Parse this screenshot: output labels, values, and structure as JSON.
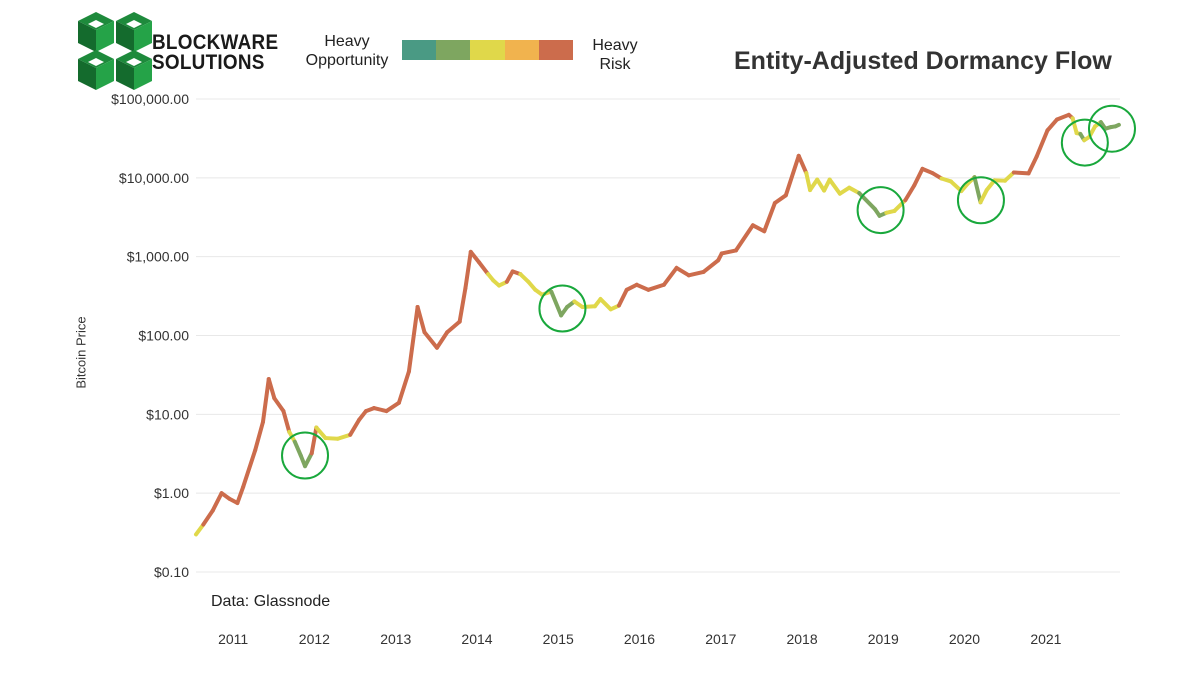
{
  "brand": {
    "line1": "BLOCKWARE",
    "line2": "SOLUTIONS",
    "logo_icon": "stacked-cubes-logo-icon",
    "colors": {
      "logo_green": "#1e8a3c",
      "logo_dark": "#1a1a1a"
    }
  },
  "legend": {
    "left_label": "Heavy Opportunity",
    "right_label": "Heavy Risk",
    "scale_colors": [
      "#4a9a84",
      "#7ea660",
      "#e0d84a",
      "#f1b34e",
      "#cc6c4c"
    ]
  },
  "source_note": "Data: Glassnode",
  "chart_data": {
    "type": "line",
    "title": "Entity-Adjusted Dormancy Flow",
    "xlabel": "",
    "ylabel": "Bitcoin Price",
    "y_scale": "log",
    "ylim": [
      0.1,
      100000
    ],
    "xlim": [
      "2010-07-18",
      "2021-11-30"
    ],
    "y_ticks": [
      "$0.10",
      "$1.00",
      "$10.00",
      "$100.00",
      "$1,000.00",
      "$10,000.00",
      "$100,000.00"
    ],
    "y_tick_values": [
      0.1,
      1,
      10,
      100,
      1000,
      10000,
      100000
    ],
    "x_ticks": [
      "2011",
      "2012",
      "2013",
      "2014",
      "2015",
      "2016",
      "2017",
      "2018",
      "2019",
      "2020",
      "2021"
    ],
    "x_tick_dates": [
      "2011-01-01",
      "2012-01-01",
      "2013-01-01",
      "2014-01-01",
      "2015-01-01",
      "2016-01-01",
      "2017-01-01",
      "2018-01-01",
      "2019-01-01",
      "2020-01-01",
      "2021-01-01"
    ],
    "grid": {
      "horizontal": true,
      "vertical": false
    },
    "grid_color": "#e8e8e8",
    "colors": {
      "heavy_opportunity": "#7ea660",
      "neutral": "#e0d84a",
      "heavy_risk": "#cc6c4c"
    },
    "series": [
      {
        "values": [
          {
            "date": "2010-07-18",
            "price": 0.3,
            "zone": "neutral"
          },
          {
            "date": "2010-08-20",
            "price": 0.4,
            "zone": "neutral"
          },
          {
            "date": "2010-10-01",
            "price": 0.6,
            "zone": "heavy_risk"
          },
          {
            "date": "2010-11-10",
            "price": 1.0,
            "zone": "heavy_risk"
          },
          {
            "date": "2010-12-15",
            "price": 0.85,
            "zone": "heavy_risk"
          },
          {
            "date": "2011-01-20",
            "price": 0.75,
            "zone": "heavy_risk"
          },
          {
            "date": "2011-02-15",
            "price": 1.2,
            "zone": "heavy_risk"
          },
          {
            "date": "2011-04-10",
            "price": 3.5,
            "zone": "heavy_risk"
          },
          {
            "date": "2011-05-15",
            "price": 8,
            "zone": "heavy_risk"
          },
          {
            "date": "2011-06-10",
            "price": 28,
            "zone": "heavy_risk"
          },
          {
            "date": "2011-07-05",
            "price": 16,
            "zone": "heavy_risk"
          },
          {
            "date": "2011-08-15",
            "price": 11,
            "zone": "heavy_risk"
          },
          {
            "date": "2011-09-10",
            "price": 6,
            "zone": "heavy_risk"
          },
          {
            "date": "2011-10-05",
            "price": 4.5,
            "zone": "neutral"
          },
          {
            "date": "2011-11-01",
            "price": 3.0,
            "zone": "heavy_opportunity"
          },
          {
            "date": "2011-11-20",
            "price": 2.2,
            "zone": "heavy_opportunity"
          },
          {
            "date": "2011-12-20",
            "price": 3.2,
            "zone": "heavy_opportunity"
          },
          {
            "date": "2012-01-10",
            "price": 6.8,
            "zone": "heavy_risk"
          },
          {
            "date": "2012-02-20",
            "price": 5.0,
            "zone": "neutral"
          },
          {
            "date": "2012-04-15",
            "price": 4.9,
            "zone": "neutral"
          },
          {
            "date": "2012-06-10",
            "price": 5.5,
            "zone": "neutral"
          },
          {
            "date": "2012-07-20",
            "price": 8.5,
            "zone": "heavy_risk"
          },
          {
            "date": "2012-08-20",
            "price": 11,
            "zone": "heavy_risk"
          },
          {
            "date": "2012-09-25",
            "price": 12,
            "zone": "heavy_risk"
          },
          {
            "date": "2012-11-20",
            "price": 11,
            "zone": "heavy_risk"
          },
          {
            "date": "2013-01-15",
            "price": 14,
            "zone": "heavy_risk"
          },
          {
            "date": "2013-03-01",
            "price": 35,
            "zone": "heavy_risk"
          },
          {
            "date": "2013-04-09",
            "price": 230,
            "zone": "heavy_risk"
          },
          {
            "date": "2013-05-10",
            "price": 110,
            "zone": "heavy_risk"
          },
          {
            "date": "2013-07-05",
            "price": 70,
            "zone": "heavy_risk"
          },
          {
            "date": "2013-08-20",
            "price": 110,
            "zone": "heavy_risk"
          },
          {
            "date": "2013-10-15",
            "price": 150,
            "zone": "heavy_risk"
          },
          {
            "date": "2013-11-10",
            "price": 400,
            "zone": "heavy_risk"
          },
          {
            "date": "2013-12-04",
            "price": 1150,
            "zone": "heavy_risk"
          },
          {
            "date": "2014-01-10",
            "price": 850,
            "zone": "heavy_risk"
          },
          {
            "date": "2014-02-20",
            "price": 600,
            "zone": "heavy_risk"
          },
          {
            "date": "2014-03-15",
            "price": 500,
            "zone": "neutral"
          },
          {
            "date": "2014-04-10",
            "price": 430,
            "zone": "neutral"
          },
          {
            "date": "2014-05-15",
            "price": 480,
            "zone": "neutral"
          },
          {
            "date": "2014-06-10",
            "price": 650,
            "zone": "heavy_risk"
          },
          {
            "date": "2014-07-15",
            "price": 600,
            "zone": "heavy_risk"
          },
          {
            "date": "2014-08-20",
            "price": 480,
            "zone": "neutral"
          },
          {
            "date": "2014-09-20",
            "price": 380,
            "zone": "neutral"
          },
          {
            "date": "2014-10-20",
            "price": 330,
            "zone": "neutral"
          },
          {
            "date": "2014-12-01",
            "price": 360,
            "zone": "neutral"
          },
          {
            "date": "2015-01-14",
            "price": 180,
            "zone": "heavy_opportunity"
          },
          {
            "date": "2015-02-10",
            "price": 230,
            "zone": "heavy_opportunity"
          },
          {
            "date": "2015-03-15",
            "price": 270,
            "zone": "heavy_opportunity"
          },
          {
            "date": "2015-04-20",
            "price": 230,
            "zone": "neutral"
          },
          {
            "date": "2015-06-15",
            "price": 235,
            "zone": "neutral"
          },
          {
            "date": "2015-07-10",
            "price": 290,
            "zone": "neutral"
          },
          {
            "date": "2015-08-25",
            "price": 215,
            "zone": "neutral"
          },
          {
            "date": "2015-10-01",
            "price": 240,
            "zone": "neutral"
          },
          {
            "date": "2015-11-05",
            "price": 380,
            "zone": "heavy_risk"
          },
          {
            "date": "2015-12-20",
            "price": 440,
            "zone": "heavy_risk"
          },
          {
            "date": "2016-02-10",
            "price": 380,
            "zone": "heavy_risk"
          },
          {
            "date": "2016-04-20",
            "price": 440,
            "zone": "heavy_risk"
          },
          {
            "date": "2016-06-16",
            "price": 720,
            "zone": "heavy_risk"
          },
          {
            "date": "2016-08-10",
            "price": 580,
            "zone": "heavy_risk"
          },
          {
            "date": "2016-10-15",
            "price": 640,
            "zone": "heavy_risk"
          },
          {
            "date": "2016-12-20",
            "price": 900,
            "zone": "heavy_risk"
          },
          {
            "date": "2017-01-05",
            "price": 1100,
            "zone": "heavy_risk"
          },
          {
            "date": "2017-03-10",
            "price": 1200,
            "zone": "heavy_risk"
          },
          {
            "date": "2017-05-25",
            "price": 2500,
            "zone": "heavy_risk"
          },
          {
            "date": "2017-07-15",
            "price": 2100,
            "zone": "heavy_risk"
          },
          {
            "date": "2017-09-01",
            "price": 4800,
            "zone": "heavy_risk"
          },
          {
            "date": "2017-10-20",
            "price": 6000,
            "zone": "heavy_risk"
          },
          {
            "date": "2017-12-17",
            "price": 19000,
            "zone": "heavy_risk"
          },
          {
            "date": "2018-01-20",
            "price": 11500,
            "zone": "heavy_risk"
          },
          {
            "date": "2018-02-06",
            "price": 7000,
            "zone": "neutral"
          },
          {
            "date": "2018-03-10",
            "price": 9500,
            "zone": "neutral"
          },
          {
            "date": "2018-04-10",
            "price": 6900,
            "zone": "neutral"
          },
          {
            "date": "2018-05-05",
            "price": 9500,
            "zone": "neutral"
          },
          {
            "date": "2018-06-20",
            "price": 6300,
            "zone": "neutral"
          },
          {
            "date": "2018-08-01",
            "price": 7500,
            "zone": "neutral"
          },
          {
            "date": "2018-09-15",
            "price": 6400,
            "zone": "neutral"
          },
          {
            "date": "2018-11-25",
            "price": 4000,
            "zone": "heavy_opportunity"
          },
          {
            "date": "2018-12-15",
            "price": 3300,
            "zone": "heavy_opportunity"
          },
          {
            "date": "2019-01-15",
            "price": 3600,
            "zone": "heavy_opportunity"
          },
          {
            "date": "2019-02-20",
            "price": 3800,
            "zone": "neutral"
          },
          {
            "date": "2019-04-10",
            "price": 5200,
            "zone": "neutral"
          },
          {
            "date": "2019-05-20",
            "price": 8000,
            "zone": "heavy_risk"
          },
          {
            "date": "2019-06-26",
            "price": 13000,
            "zone": "heavy_risk"
          },
          {
            "date": "2019-08-10",
            "price": 11500,
            "zone": "heavy_risk"
          },
          {
            "date": "2019-09-20",
            "price": 9800,
            "zone": "heavy_risk"
          },
          {
            "date": "2019-11-01",
            "price": 9000,
            "zone": "neutral"
          },
          {
            "date": "2019-12-18",
            "price": 6800,
            "zone": "neutral"
          },
          {
            "date": "2020-01-15",
            "price": 8400,
            "zone": "neutral"
          },
          {
            "date": "2020-02-15",
            "price": 10200,
            "zone": "neutral"
          },
          {
            "date": "2020-03-13",
            "price": 4900,
            "zone": "heavy_opportunity"
          },
          {
            "date": "2020-04-10",
            "price": 7000,
            "zone": "neutral"
          },
          {
            "date": "2020-05-15",
            "price": 9300,
            "zone": "neutral"
          },
          {
            "date": "2020-07-01",
            "price": 9200,
            "zone": "neutral"
          },
          {
            "date": "2020-08-10",
            "price": 11700,
            "zone": "neutral"
          },
          {
            "date": "2020-10-15",
            "price": 11400,
            "zone": "heavy_risk"
          },
          {
            "date": "2020-11-20",
            "price": 18500,
            "zone": "heavy_risk"
          },
          {
            "date": "2021-01-08",
            "price": 40000,
            "zone": "heavy_risk"
          },
          {
            "date": "2021-02-20",
            "price": 55000,
            "zone": "heavy_risk"
          },
          {
            "date": "2021-04-14",
            "price": 63000,
            "zone": "heavy_risk"
          },
          {
            "date": "2021-05-01",
            "price": 57000,
            "zone": "heavy_risk"
          },
          {
            "date": "2021-05-19",
            "price": 37000,
            "zone": "neutral"
          },
          {
            "date": "2021-06-05",
            "price": 36000,
            "zone": "neutral"
          },
          {
            "date": "2021-06-22",
            "price": 30000,
            "zone": "heavy_opportunity"
          },
          {
            "date": "2021-07-15",
            "price": 33000,
            "zone": "neutral"
          },
          {
            "date": "2021-08-10",
            "price": 45000,
            "zone": "neutral"
          },
          {
            "date": "2021-09-05",
            "price": 51000,
            "zone": "neutral"
          },
          {
            "date": "2021-09-25",
            "price": 42000,
            "zone": "heavy_opportunity"
          },
          {
            "date": "2021-10-20",
            "price": 44000,
            "zone": "heavy_opportunity"
          },
          {
            "date": "2021-11-10",
            "price": 45000,
            "zone": "heavy_opportunity"
          },
          {
            "date": "2021-11-25",
            "price": 47000,
            "zone": "heavy_opportunity"
          }
        ]
      }
    ],
    "highlight_circles": [
      {
        "date": "2011-11-20",
        "price": 3.0
      },
      {
        "date": "2015-01-20",
        "price": 220
      },
      {
        "date": "2018-12-20",
        "price": 3900
      },
      {
        "date": "2020-03-15",
        "price": 5200
      },
      {
        "date": "2021-06-25",
        "price": 28000
      },
      {
        "date": "2021-10-25",
        "price": 42000
      }
    ],
    "highlight_color": "#19a83c"
  }
}
